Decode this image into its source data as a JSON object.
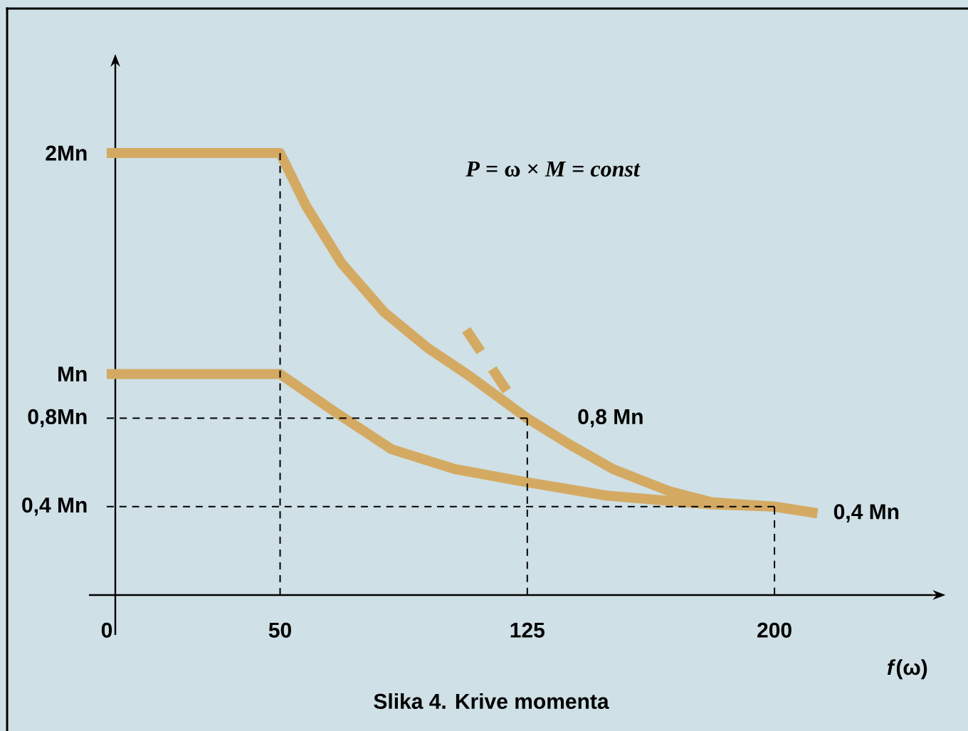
{
  "chart_data": {
    "type": "line",
    "xlabel": "*f*(ω)",
    "annotations": [
      "*P* = ω × *M* = *const*",
      "Slika 4. Krive momenta",
      {
        "text": "0,8 Mn",
        "x": 125,
        "y": 0.8
      },
      {
        "text": "0,4 Mn",
        "x": 213,
        "y": 0.37
      }
    ],
    "xlim": [
      -8,
      248
    ],
    "ylim": [
      -0.18,
      2.39
    ],
    "xticks": [
      0,
      50,
      125,
      200
    ],
    "yticks": [
      {
        "value": 0.4,
        "label": "0,4 Mn"
      },
      {
        "value": 0.8,
        "label": "0,8Mn"
      },
      {
        "value": 1,
        "label": "Mn"
      },
      {
        "value": 2,
        "label": "2Mn"
      }
    ],
    "series": [
      {
        "color": "#000000",
        "line_style": "dashed",
        "x": [
          -2.6,
          125
        ],
        "values": [
          0.8,
          0.8
        ]
      },
      {
        "color": "#000000",
        "line_style": "dashed",
        "x": [
          125,
          125
        ],
        "values": [
          0,
          0.8
        ]
      },
      {
        "color": "#000000",
        "line_style": "dashed",
        "x": [
          -2.6,
          200
        ],
        "values": [
          0.4,
          0.4
        ]
      },
      {
        "color": "#000000",
        "line_style": "dashed",
        "x": [
          200,
          200
        ],
        "values": [
          0,
          0.4
        ]
      },
      {
        "color": "#000000",
        "line_style": "dashed",
        "x": [
          50,
          50
        ],
        "values": [
          0,
          2
        ]
      },
      {
        "color": "#d4aa63",
        "x": [
          -2.6,
          50,
          57.9,
          68.7,
          81.6,
          94.6,
          107.6,
          125,
          138,
          151,
          168,
          181,
          200,
          213
        ],
        "values": [
          2,
          2,
          1.76,
          1.5,
          1.28,
          1.12,
          0.99,
          0.8,
          0.68,
          0.57,
          0.47,
          0.42,
          0.4,
          0.37
        ]
      },
      {
        "color": "#d4aa63",
        "x": [
          -2.6,
          50,
          66.5,
          83.8,
          103,
          125,
          149,
          181,
          200,
          213
        ],
        "values": [
          1,
          1,
          0.83,
          0.66,
          0.57,
          0.51,
          0.45,
          0.41,
          0.4,
          0.37
        ]
      },
      {
        "color": "#d4aa63",
        "line_style": "dashed",
        "x": [
          106.5,
          119.4
        ],
        "values": [
          1.2,
          0.91
        ]
      }
    ]
  }
}
